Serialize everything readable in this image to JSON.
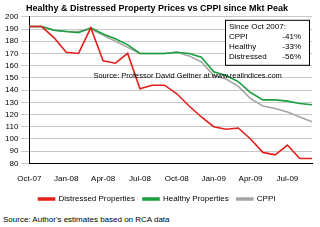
{
  "chart_data": {
    "type": "line",
    "title": "Healthy & Distressed Property Prices vs CPPI since Mkt Peak",
    "categories": [
      "Oct-07",
      null,
      null,
      "Jan-08",
      null,
      null,
      "Apr-08",
      null,
      null,
      "Jul-08",
      null,
      null,
      "Oct-08",
      null,
      null,
      "Jan-09",
      null,
      null,
      "Apr-09",
      null,
      null,
      "Jul-09",
      null,
      null
    ],
    "series": [
      {
        "name": "Distressed Properties",
        "color": "#e3201b",
        "values": [
          192,
          192,
          183,
          171,
          170,
          191,
          164,
          162,
          170,
          141,
          144,
          144,
          137,
          127,
          118,
          110,
          108,
          109,
          100,
          89,
          87,
          95,
          84,
          84
        ]
      },
      {
        "name": "Healthy Properties",
        "color": "#1a9e3f",
        "values": [
          192,
          192,
          189,
          188,
          187,
          191,
          186,
          182,
          177,
          170,
          170,
          170,
          171,
          170,
          167,
          155,
          152,
          147,
          138,
          132,
          132,
          131,
          129,
          128
        ]
      },
      {
        "name": "CPPI",
        "color": "#a6a6a6",
        "values": [
          192,
          192,
          189,
          188,
          188,
          190,
          185,
          180,
          175,
          170,
          170,
          170,
          171,
          168,
          163,
          152,
          149,
          143,
          133,
          127,
          125,
          122,
          118,
          114
        ]
      }
    ],
    "ylim": [
      80,
      200
    ],
    "yticks": [
      80,
      90,
      100,
      110,
      120,
      130,
      140,
      150,
      160,
      170,
      180,
      190,
      200
    ],
    "grid": true,
    "legend": "bottom",
    "annotations": {
      "summary": {
        "heading": "Since Oct 2007:",
        "rows": [
          [
            "CPPI",
            "-41%"
          ],
          [
            "Healthy",
            "-33%"
          ],
          [
            "Distressed",
            "-56%"
          ]
        ]
      },
      "inner_source": "Source: Professor David Geltner at www.realindices.com",
      "source": "Source: Author's estimates based on RCA data"
    }
  }
}
